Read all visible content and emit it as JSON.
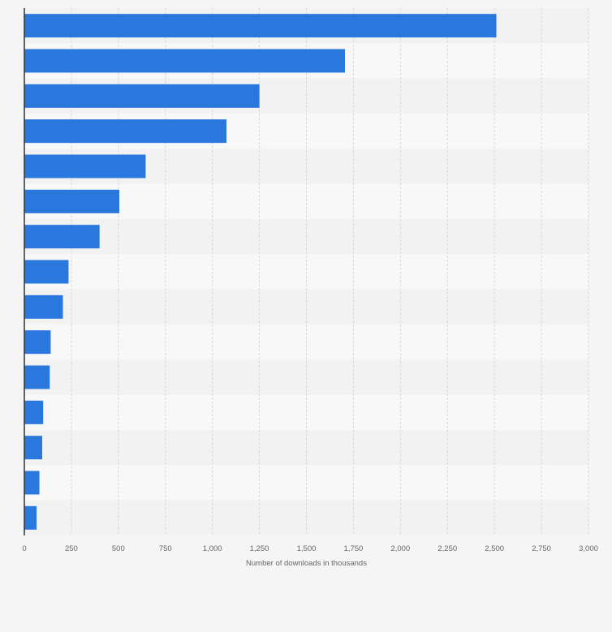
{
  "chart_data": {
    "type": "bar",
    "orientation": "horizontal",
    "title": "",
    "xlabel": "Number of downloads in thousands",
    "ylabel": "",
    "xlim": [
      0,
      3000
    ],
    "xticks": [
      0,
      250,
      500,
      750,
      1000,
      1250,
      1500,
      1750,
      2000,
      2250,
      2500,
      2750,
      3000
    ],
    "xtick_labels": [
      "0",
      "250",
      "500",
      "750",
      "1,000",
      "1,250",
      "1,500",
      "1,750",
      "2,000",
      "2,250",
      "2,500",
      "2,750",
      "3,000"
    ],
    "categories": [
      "",
      "",
      "",
      "",
      "",
      "",
      "",
      "",
      "",
      "",
      "",
      "",
      "",
      "",
      ""
    ],
    "values": [
      2510,
      1705,
      1250,
      1075,
      645,
      505,
      400,
      235,
      205,
      140,
      135,
      100,
      95,
      80,
      65
    ],
    "bar_color": "#2a77de",
    "band_colors": [
      "#f2f2f2",
      "#f8f8f8"
    ],
    "grid_color": "#d8d8d8",
    "axis_color": "#333333",
    "background": "#f5f5f5",
    "grid": true,
    "legend": "none"
  }
}
